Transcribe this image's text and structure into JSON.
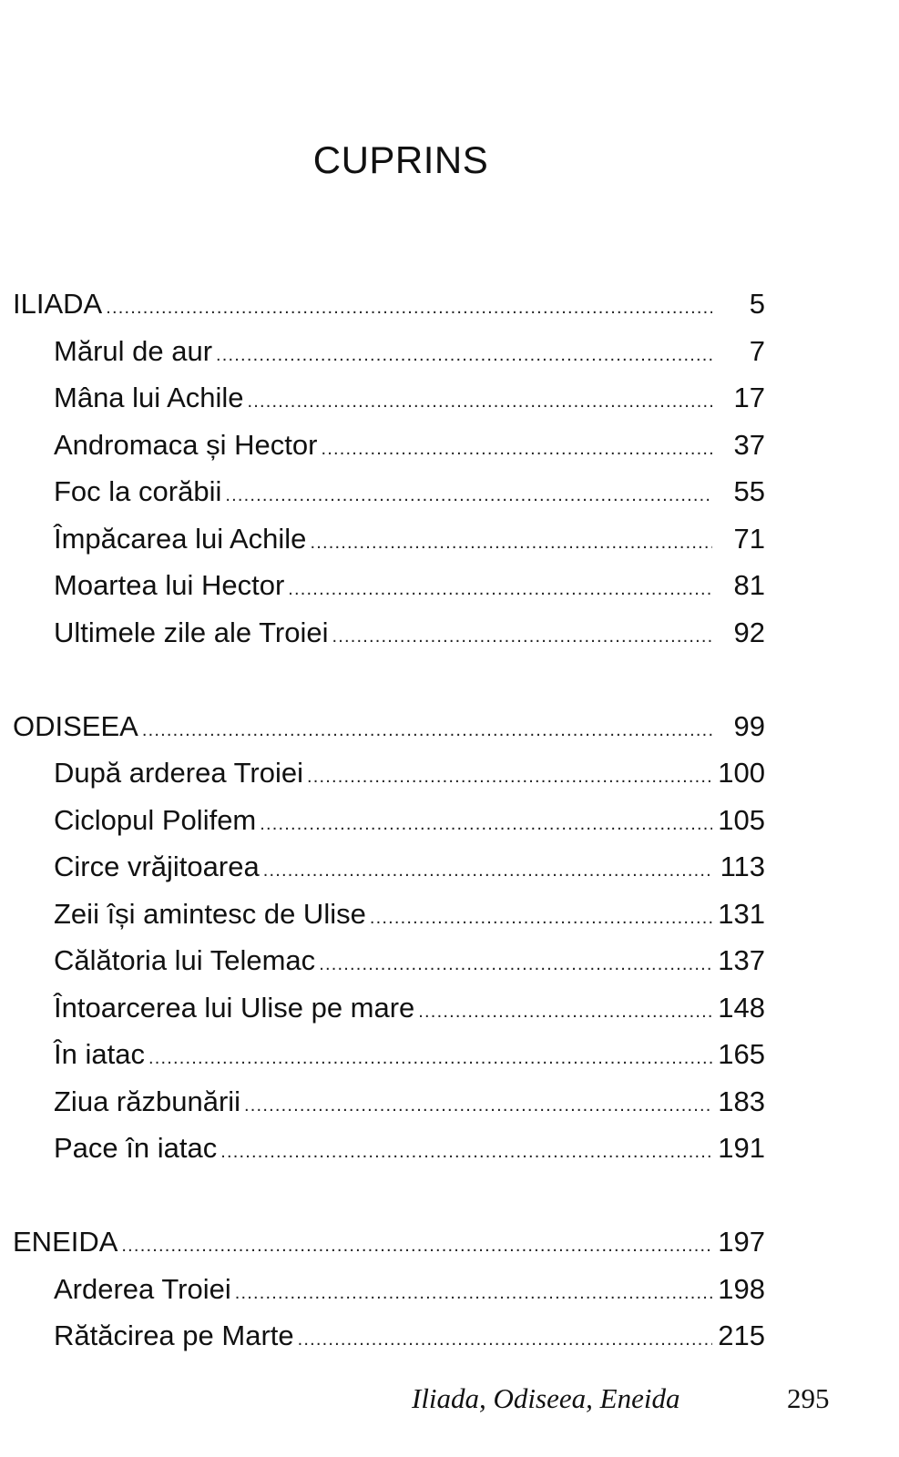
{
  "title": "CUPRINS",
  "sections": [
    {
      "label": "ILIADA",
      "page": "5",
      "items": [
        {
          "label": "Mărul de aur",
          "page": "7"
        },
        {
          "label": "Mâna lui Achile",
          "page": "17"
        },
        {
          "label": "Andromaca și Hector",
          "page": "37"
        },
        {
          "label": "Foc la corăbii",
          "page": "55"
        },
        {
          "label": "Împăcarea lui Achile",
          "page": "71"
        },
        {
          "label": "Moartea lui Hector",
          "page": "81"
        },
        {
          "label": "Ultimele zile ale Troiei",
          "page": "92"
        }
      ]
    },
    {
      "label": "ODISEEA",
      "page": "99",
      "items": [
        {
          "label": "După arderea Troiei",
          "page": "100"
        },
        {
          "label": "Ciclopul Polifem",
          "page": "105"
        },
        {
          "label": "Circe vrăjitoarea",
          "page": "113"
        },
        {
          "label": "Zeii își amintesc de Ulise",
          "page": "131"
        },
        {
          "label": "Călătoria lui Telemac",
          "page": "137"
        },
        {
          "label": "Întoarcerea lui Ulise pe mare",
          "page": "148"
        },
        {
          "label": "În iatac",
          "page": "165"
        },
        {
          "label": "Ziua răzbunării",
          "page": "183"
        },
        {
          "label": "Pace în iatac",
          "page": "191"
        }
      ]
    },
    {
      "label": "ENEIDA",
      "page": "197",
      "items": [
        {
          "label": "Arderea Troiei",
          "page": "198"
        },
        {
          "label": "Rătăcirea pe Marte",
          "page": "215"
        }
      ]
    }
  ],
  "footer": {
    "book_title": "Iliada, Odiseea, Eneida",
    "page_number": "295"
  }
}
